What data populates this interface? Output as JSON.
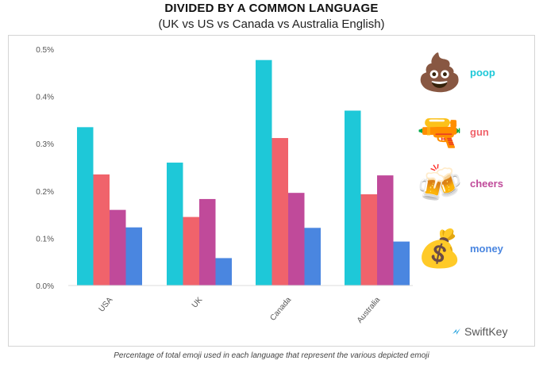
{
  "header": {
    "title": "DIVIDED BY A COMMON LANGUAGE",
    "subtitle": "(UK vs US vs Canada vs Australia English)"
  },
  "caption": "Percentage of total emoji used in each language that represent the various depicted emoji",
  "logo": {
    "text": "SwiftKey"
  },
  "legend": [
    {
      "label": "poop",
      "icon": "poop-icon",
      "glyph": "💩",
      "color": "#1ec8d8"
    },
    {
      "label": "gun",
      "icon": "gun-icon",
      "glyph": "🔫",
      "color": "#f0636b"
    },
    {
      "label": "cheers",
      "icon": "beer-mugs-icon",
      "glyph": "🍻",
      "color": "#c04a9a"
    },
    {
      "label": "money",
      "icon": "money-bag-icon",
      "glyph": "💰",
      "color": "#4a86e0"
    }
  ],
  "chart_data": {
    "type": "bar",
    "categories": [
      "USA",
      "UK",
      "Canada",
      "Australia"
    ],
    "series": [
      {
        "name": "poop",
        "color": "#1ec8d8",
        "values": [
          0.335,
          0.26,
          0.477,
          0.37
        ]
      },
      {
        "name": "gun",
        "color": "#f0636b",
        "values": [
          0.235,
          0.145,
          0.312,
          0.193
        ]
      },
      {
        "name": "cheers",
        "color": "#c04a9a",
        "values": [
          0.16,
          0.183,
          0.196,
          0.233
        ]
      },
      {
        "name": "money",
        "color": "#4a86e0",
        "values": [
          0.123,
          0.058,
          0.122,
          0.093
        ]
      }
    ],
    "yticks": [
      "0.0%",
      "0.1%",
      "0.2%",
      "0.3%",
      "0.4%",
      "0.5%"
    ],
    "ylim": [
      0,
      0.5
    ],
    "grid": false,
    "legend_position": "right"
  }
}
